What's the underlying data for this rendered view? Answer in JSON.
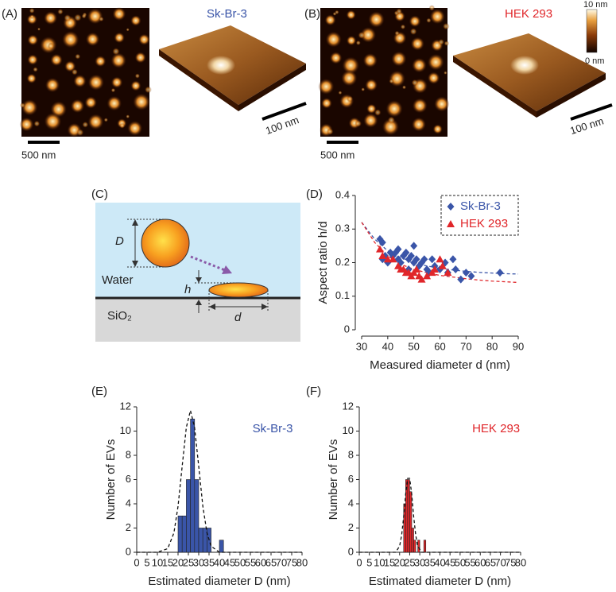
{
  "panels": {
    "a": "(A)",
    "b": "(B)",
    "c": "(C)",
    "d": "(D)",
    "e": "(E)",
    "f": "(F)"
  },
  "afm": {
    "a_title": "Sk-Br-3",
    "a_scale_2d": "500 nm",
    "a_scale_3d": "100 nm",
    "b_title": "HEK 293",
    "b_scale_2d": "500 nm",
    "b_scale_3d": "100 nm",
    "colorbar_top": "10 nm",
    "colorbar_bottom": "0 nm"
  },
  "diagram": {
    "D": "D",
    "h": "h",
    "d": "d",
    "water": "Water",
    "substrate": "SiO₂"
  },
  "chart_data": [
    {
      "type": "scatter",
      "xlabel": "Measured diameter d (nm)",
      "ylabel": "Aspect ratio h/d",
      "xlim": [
        30,
        90
      ],
      "xticks": [
        30,
        40,
        50,
        60,
        70,
        80,
        90
      ],
      "ylim": [
        0,
        0.4
      ],
      "yticks": [
        0,
        0.1,
        0.2,
        0.3,
        0.4
      ],
      "legend": "upper right",
      "series": [
        {
          "name": "Sk-Br-3",
          "color": "#3a55a8",
          "marker": "diamond",
          "x": [
            37,
            38,
            38,
            39,
            40,
            41,
            42,
            43,
            44,
            44,
            45,
            46,
            47,
            48,
            48,
            49,
            50,
            50,
            51,
            52,
            53,
            54,
            55,
            56,
            57,
            58,
            60,
            62,
            63,
            65,
            66,
            68,
            70,
            72,
            83
          ],
          "values": [
            0.27,
            0.26,
            0.21,
            0.22,
            0.2,
            0.23,
            0.22,
            0.23,
            0.24,
            0.21,
            0.2,
            0.22,
            0.23,
            0.21,
            0.18,
            0.22,
            0.25,
            0.2,
            0.21,
            0.19,
            0.2,
            0.21,
            0.18,
            0.17,
            0.21,
            0.19,
            0.18,
            0.2,
            0.17,
            0.21,
            0.18,
            0.15,
            0.17,
            0.16,
            0.17
          ]
        },
        {
          "name": "HEK 293",
          "color": "#e0262a",
          "marker": "triangle",
          "x": [
            37,
            38,
            40,
            42,
            44,
            45,
            46,
            47,
            48,
            49,
            50,
            51,
            52,
            53,
            55,
            57,
            58,
            60,
            61,
            63
          ],
          "values": [
            0.24,
            0.22,
            0.21,
            0.21,
            0.19,
            0.18,
            0.18,
            0.17,
            0.17,
            0.16,
            0.17,
            0.18,
            0.16,
            0.15,
            0.16,
            0.17,
            0.18,
            0.21,
            0.19,
            0.17
          ]
        }
      ],
      "fits": [
        {
          "color": "#3a55a8",
          "x": [
            30,
            35,
            40,
            45,
            50,
            55,
            60,
            65,
            70,
            75,
            80,
            85,
            90
          ],
          "values": [
            0.32,
            0.27,
            0.235,
            0.215,
            0.2,
            0.19,
            0.183,
            0.178,
            0.174,
            0.171,
            0.169,
            0.167,
            0.166
          ]
        },
        {
          "color": "#e0262a",
          "x": [
            30,
            35,
            40,
            45,
            50,
            55,
            60,
            65,
            70,
            75,
            80,
            85,
            90
          ],
          "values": [
            0.32,
            0.26,
            0.22,
            0.195,
            0.18,
            0.17,
            0.162,
            0.157,
            0.152,
            0.148,
            0.145,
            0.143,
            0.141
          ]
        }
      ]
    },
    {
      "type": "histogram",
      "title": "Sk-Br-3",
      "title_color": "#3a55a8",
      "xlabel": "Estimated diameter D (nm)",
      "ylabel": "Number of EVs",
      "xlim": [
        0,
        80
      ],
      "xticks": [
        0,
        5,
        10,
        15,
        20,
        25,
        30,
        35,
        40,
        45,
        50,
        55,
        60,
        65,
        70,
        75,
        80
      ],
      "ylim": [
        0,
        12
      ],
      "yticks": [
        0,
        2,
        4,
        6,
        8,
        10,
        12
      ],
      "color": "#3a55a8",
      "bins": [
        20,
        22,
        24,
        26,
        28,
        30,
        32,
        34,
        36,
        38,
        40,
        42
      ],
      "values": [
        3,
        3,
        6,
        11,
        6,
        2,
        2,
        2,
        0,
        0,
        1
      ],
      "fit": {
        "x": [
          0,
          10,
          15,
          18,
          20,
          22,
          24,
          26,
          28,
          30,
          32,
          34,
          36,
          40,
          50,
          80
        ],
        "values": [
          0,
          0,
          0.3,
          1.6,
          3.8,
          7.1,
          10.3,
          11.7,
          10.3,
          7.1,
          3.8,
          1.6,
          0.5,
          0,
          0,
          0
        ]
      }
    },
    {
      "type": "histogram",
      "title": "HEK 293",
      "title_color": "#e0262a",
      "xlabel": "Estimated diameter D (nm)",
      "ylabel": "Number of EVs",
      "xlim": [
        0,
        80
      ],
      "xticks": [
        0,
        5,
        10,
        15,
        20,
        25,
        30,
        35,
        40,
        45,
        50,
        55,
        60,
        65,
        70,
        75,
        80
      ],
      "ylim": [
        0,
        12
      ],
      "yticks": [
        0,
        2,
        4,
        6,
        8,
        10,
        12
      ],
      "color": "#e0262a",
      "bins": [
        22,
        23,
        24,
        25,
        26,
        27,
        28,
        29,
        30,
        31,
        32,
        33
      ],
      "values": [
        4,
        6,
        6,
        5,
        2,
        1,
        0,
        1,
        0,
        0,
        1
      ],
      "fit": {
        "x": [
          0,
          18,
          20,
          21,
          22,
          23,
          24,
          25,
          26,
          27,
          28,
          29,
          31,
          40,
          80
        ],
        "values": [
          0,
          0,
          0.5,
          1.4,
          2.9,
          4.8,
          6.1,
          6.1,
          4.8,
          2.9,
          1.4,
          0.5,
          0,
          0,
          0
        ]
      }
    }
  ]
}
